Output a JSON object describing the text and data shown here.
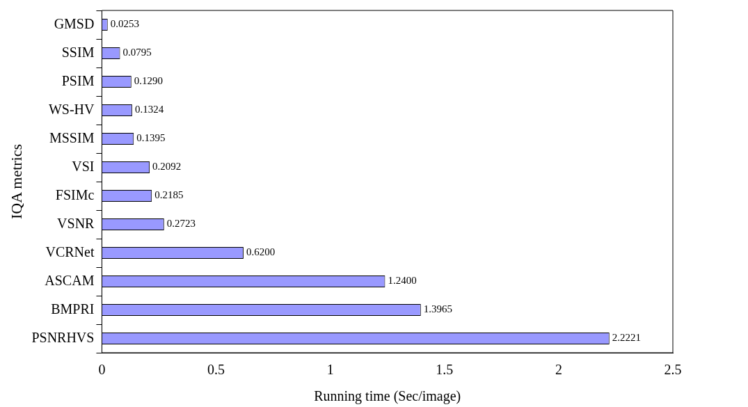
{
  "chart_data": {
    "type": "bar",
    "orientation": "horizontal",
    "xlabel": "Running time (Sec/image)",
    "ylabel": "IQA metrics",
    "categories": [
      "GMSD",
      "SSIM",
      "PSIM",
      "WS-HV",
      "MSSIM",
      "VSI",
      "FSIMc",
      "VSNR",
      "VCRNet",
      "ASCAM",
      "BMPRI",
      "PSNRHVS"
    ],
    "values": [
      0.0253,
      0.0795,
      0.129,
      0.1324,
      0.1395,
      0.2092,
      0.2185,
      0.2723,
      0.62,
      1.24,
      1.3965,
      2.2221
    ],
    "value_labels": [
      "0.0253",
      "0.0795",
      "0.1290",
      "0.1324",
      "0.1395",
      "0.2092",
      "0.2185",
      "0.2723",
      "0.6200",
      "1.2400",
      "1.3965",
      "2.2221"
    ],
    "color": "#9999ff",
    "xlim": [
      0,
      2.5
    ],
    "xticks": [
      0,
      0.5,
      1,
      1.5,
      2,
      2.5
    ],
    "grid": false,
    "legend": false
  }
}
